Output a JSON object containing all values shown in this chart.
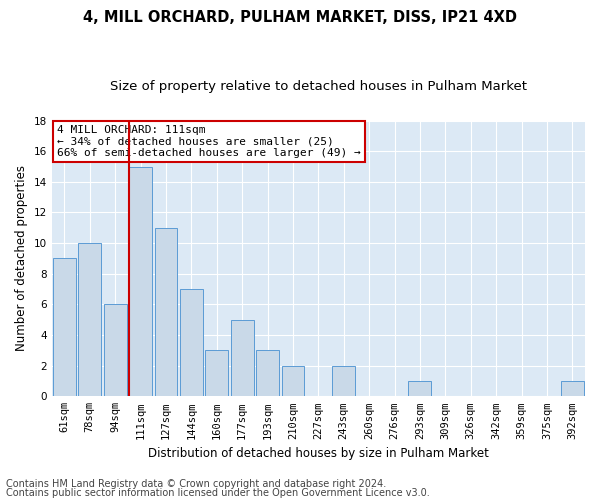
{
  "title": "4, MILL ORCHARD, PULHAM MARKET, DISS, IP21 4XD",
  "subtitle": "Size of property relative to detached houses in Pulham Market",
  "xlabel": "Distribution of detached houses by size in Pulham Market",
  "ylabel": "Number of detached properties",
  "categories": [
    "61sqm",
    "78sqm",
    "94sqm",
    "111sqm",
    "127sqm",
    "144sqm",
    "160sqm",
    "177sqm",
    "193sqm",
    "210sqm",
    "227sqm",
    "243sqm",
    "260sqm",
    "276sqm",
    "293sqm",
    "309sqm",
    "326sqm",
    "342sqm",
    "359sqm",
    "375sqm",
    "392sqm"
  ],
  "values": [
    9,
    10,
    6,
    15,
    11,
    7,
    3,
    5,
    3,
    2,
    0,
    2,
    0,
    0,
    1,
    0,
    0,
    0,
    0,
    0,
    1
  ],
  "bar_color": "#c9d9e8",
  "bar_edge_color": "#5b9bd5",
  "highlight_index": 3,
  "highlight_line_color": "#cc0000",
  "ylim": [
    0,
    18
  ],
  "yticks": [
    0,
    2,
    4,
    6,
    8,
    10,
    12,
    14,
    16,
    18
  ],
  "annotation_box_text": "4 MILL ORCHARD: 111sqm\n← 34% of detached houses are smaller (25)\n66% of semi-detached houses are larger (49) →",
  "annotation_box_color": "#ffffff",
  "annotation_box_edge_color": "#cc0000",
  "footer_line1": "Contains HM Land Registry data © Crown copyright and database right 2024.",
  "footer_line2": "Contains public sector information licensed under the Open Government Licence v3.0.",
  "background_color": "#ffffff",
  "plot_bg_color": "#dce9f5",
  "grid_color": "#ffffff",
  "title_fontsize": 10.5,
  "subtitle_fontsize": 9.5,
  "axis_label_fontsize": 8.5,
  "tick_fontsize": 7.5,
  "annotation_fontsize": 8,
  "footer_fontsize": 7
}
